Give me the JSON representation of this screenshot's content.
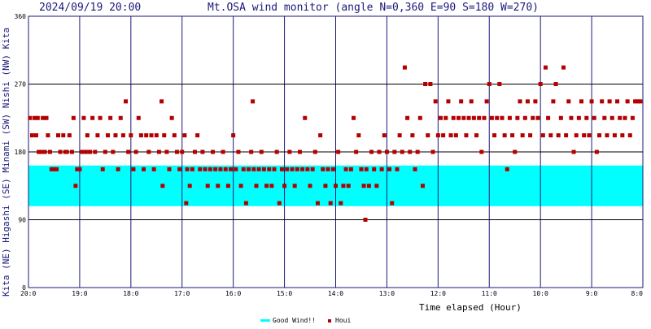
{
  "header": {
    "datetime": "2024/09/19 20:00",
    "title": "Mt.OSA wind monitor (angle N=0,360 E=90 S=180 W=270)"
  },
  "y_axis": {
    "tick_labels": [
      "0",
      "90",
      "180",
      "270",
      "360"
    ],
    "label": "Kita (NE) Higashi (SE) Minami (SW) Nishi (NW) Kita"
  },
  "x_axis": {
    "tick_labels": [
      "20:0",
      "19:0",
      "18:0",
      "17:0",
      "16:0",
      "15:0",
      "14:0",
      "13:0",
      "12:0",
      "11:0",
      "10:0",
      "9:0",
      "8:0"
    ],
    "label": "Time elapsed (Hour)"
  },
  "legend": {
    "good_wind": "Good Wind!!",
    "houi": "Houi"
  },
  "colors": {
    "good_band": "#00ffff",
    "marker": "#b30000",
    "grid": "#1a1a7a",
    "frame": "#1a1a7a"
  },
  "chart_data": {
    "type": "scatter",
    "title": "Mt.OSA wind monitor (angle N=0,360 E=90 S=180 W=270)",
    "xlabel": "Time elapsed (Hour)",
    "ylabel": "Kita (NE) Higashi (SE) Minami (SW) Nishi (NW) Kita",
    "xlim": [
      0,
      12
    ],
    "ylim": [
      0,
      360
    ],
    "x_start": "20:00",
    "x_end": "8:00",
    "grid": true,
    "legend_position": "bottom-center",
    "good_wind_band": [
      108,
      162
    ],
    "series": [
      {
        "name": "Houi",
        "points": [
          [
            0.03,
            225
          ],
          [
            0.07,
            202
          ],
          [
            0.12,
            225
          ],
          [
            0.15,
            202
          ],
          [
            0.18,
            225
          ],
          [
            0.2,
            180
          ],
          [
            0.25,
            180
          ],
          [
            0.28,
            225
          ],
          [
            0.32,
            180
          ],
          [
            0.35,
            225
          ],
          [
            0.38,
            202
          ],
          [
            0.42,
            180
          ],
          [
            0.45,
            157
          ],
          [
            0.5,
            157
          ],
          [
            0.55,
            157
          ],
          [
            0.58,
            202
          ],
          [
            0.62,
            180
          ],
          [
            0.68,
            202
          ],
          [
            0.72,
            180
          ],
          [
            0.75,
            180
          ],
          [
            0.8,
            202
          ],
          [
            0.85,
            180
          ],
          [
            0.88,
            225
          ],
          [
            0.92,
            135
          ],
          [
            0.95,
            157
          ],
          [
            1.0,
            157
          ],
          [
            1.05,
            180
          ],
          [
            1.08,
            225
          ],
          [
            1.12,
            180
          ],
          [
            1.15,
            202
          ],
          [
            1.2,
            180
          ],
          [
            1.25,
            225
          ],
          [
            1.3,
            180
          ],
          [
            1.35,
            202
          ],
          [
            1.4,
            225
          ],
          [
            1.45,
            157
          ],
          [
            1.5,
            180
          ],
          [
            1.55,
            202
          ],
          [
            1.6,
            225
          ],
          [
            1.65,
            180
          ],
          [
            1.7,
            202
          ],
          [
            1.75,
            157
          ],
          [
            1.8,
            225
          ],
          [
            1.85,
            202
          ],
          [
            1.9,
            247
          ],
          [
            1.95,
            180
          ],
          [
            2.0,
            202
          ],
          [
            2.05,
            157
          ],
          [
            2.1,
            180
          ],
          [
            2.15,
            225
          ],
          [
            2.2,
            202
          ],
          [
            2.25,
            157
          ],
          [
            2.3,
            202
          ],
          [
            2.35,
            180
          ],
          [
            2.4,
            202
          ],
          [
            2.45,
            157
          ],
          [
            2.5,
            202
          ],
          [
            2.55,
            180
          ],
          [
            2.6,
            247
          ],
          [
            2.62,
            135
          ],
          [
            2.65,
            202
          ],
          [
            2.7,
            180
          ],
          [
            2.75,
            157
          ],
          [
            2.8,
            225
          ],
          [
            2.85,
            202
          ],
          [
            2.9,
            180
          ],
          [
            2.95,
            157
          ],
          [
            3.0,
            180
          ],
          [
            3.05,
            202
          ],
          [
            3.08,
            112
          ],
          [
            3.1,
            157
          ],
          [
            3.15,
            135
          ],
          [
            3.2,
            157
          ],
          [
            3.25,
            180
          ],
          [
            3.3,
            202
          ],
          [
            3.35,
            157
          ],
          [
            3.4,
            180
          ],
          [
            3.45,
            157
          ],
          [
            3.5,
            135
          ],
          [
            3.55,
            157
          ],
          [
            3.6,
            180
          ],
          [
            3.65,
            157
          ],
          [
            3.7,
            135
          ],
          [
            3.75,
            157
          ],
          [
            3.8,
            180
          ],
          [
            3.85,
            157
          ],
          [
            3.9,
            135
          ],
          [
            3.95,
            157
          ],
          [
            4.0,
            202
          ],
          [
            4.05,
            157
          ],
          [
            4.1,
            180
          ],
          [
            4.15,
            135
          ],
          [
            4.2,
            157
          ],
          [
            4.25,
            112
          ],
          [
            4.3,
            157
          ],
          [
            4.35,
            180
          ],
          [
            4.38,
            247
          ],
          [
            4.4,
            157
          ],
          [
            4.45,
            135
          ],
          [
            4.5,
            157
          ],
          [
            4.55,
            180
          ],
          [
            4.6,
            157
          ],
          [
            4.65,
            135
          ],
          [
            4.7,
            157
          ],
          [
            4.75,
            135
          ],
          [
            4.8,
            157
          ],
          [
            4.85,
            180
          ],
          [
            4.9,
            112
          ],
          [
            4.95,
            157
          ],
          [
            5.0,
            135
          ],
          [
            5.05,
            157
          ],
          [
            5.1,
            180
          ],
          [
            5.15,
            157
          ],
          [
            5.2,
            135
          ],
          [
            5.25,
            157
          ],
          [
            5.3,
            180
          ],
          [
            5.35,
            157
          ],
          [
            5.4,
            225
          ],
          [
            5.45,
            157
          ],
          [
            5.5,
            135
          ],
          [
            5.55,
            157
          ],
          [
            5.6,
            180
          ],
          [
            5.65,
            112
          ],
          [
            5.7,
            202
          ],
          [
            5.75,
            157
          ],
          [
            5.8,
            135
          ],
          [
            5.85,
            157
          ],
          [
            5.9,
            112
          ],
          [
            5.95,
            157
          ],
          [
            6.0,
            135
          ],
          [
            6.05,
            180
          ],
          [
            6.1,
            112
          ],
          [
            6.15,
            135
          ],
          [
            6.2,
            157
          ],
          [
            6.25,
            135
          ],
          [
            6.3,
            157
          ],
          [
            6.35,
            225
          ],
          [
            6.4,
            180
          ],
          [
            6.45,
            202
          ],
          [
            6.5,
            157
          ],
          [
            6.55,
            135
          ],
          [
            6.58,
            90
          ],
          [
            6.6,
            157
          ],
          [
            6.65,
            135
          ],
          [
            6.7,
            180
          ],
          [
            6.75,
            157
          ],
          [
            6.8,
            135
          ],
          [
            6.85,
            180
          ],
          [
            6.9,
            157
          ],
          [
            6.95,
            202
          ],
          [
            7.0,
            180
          ],
          [
            7.05,
            157
          ],
          [
            7.1,
            112
          ],
          [
            7.15,
            180
          ],
          [
            7.2,
            157
          ],
          [
            7.25,
            202
          ],
          [
            7.3,
            180
          ],
          [
            7.35,
            292
          ],
          [
            7.4,
            225
          ],
          [
            7.45,
            180
          ],
          [
            7.5,
            202
          ],
          [
            7.55,
            157
          ],
          [
            7.6,
            180
          ],
          [
            7.65,
            225
          ],
          [
            7.7,
            135
          ],
          [
            7.75,
            270
          ],
          [
            7.8,
            202
          ],
          [
            7.85,
            270
          ],
          [
            7.9,
            180
          ],
          [
            7.95,
            247
          ],
          [
            8.0,
            202
          ],
          [
            8.05,
            225
          ],
          [
            8.1,
            202
          ],
          [
            8.15,
            225
          ],
          [
            8.2,
            247
          ],
          [
            8.25,
            202
          ],
          [
            8.3,
            225
          ],
          [
            8.35,
            202
          ],
          [
            8.4,
            225
          ],
          [
            8.45,
            247
          ],
          [
            8.5,
            225
          ],
          [
            8.55,
            202
          ],
          [
            8.6,
            225
          ],
          [
            8.65,
            247
          ],
          [
            8.7,
            225
          ],
          [
            8.75,
            202
          ],
          [
            8.8,
            225
          ],
          [
            8.85,
            180
          ],
          [
            8.9,
            225
          ],
          [
            8.95,
            247
          ],
          [
            9.0,
            270
          ],
          [
            9.05,
            225
          ],
          [
            9.1,
            202
          ],
          [
            9.15,
            225
          ],
          [
            9.2,
            270
          ],
          [
            9.25,
            225
          ],
          [
            9.3,
            202
          ],
          [
            9.35,
            157
          ],
          [
            9.4,
            225
          ],
          [
            9.45,
            202
          ],
          [
            9.5,
            180
          ],
          [
            9.55,
            225
          ],
          [
            9.6,
            247
          ],
          [
            9.65,
            202
          ],
          [
            9.7,
            225
          ],
          [
            9.75,
            247
          ],
          [
            9.8,
            202
          ],
          [
            9.85,
            225
          ],
          [
            9.9,
            247
          ],
          [
            9.95,
            225
          ],
          [
            10.0,
            270
          ],
          [
            10.05,
            202
          ],
          [
            10.1,
            292
          ],
          [
            10.15,
            225
          ],
          [
            10.2,
            202
          ],
          [
            10.25,
            247
          ],
          [
            10.3,
            270
          ],
          [
            10.35,
            202
          ],
          [
            10.4,
            225
          ],
          [
            10.45,
            292
          ],
          [
            10.5,
            202
          ],
          [
            10.55,
            247
          ],
          [
            10.6,
            225
          ],
          [
            10.65,
            180
          ],
          [
            10.7,
            202
          ],
          [
            10.75,
            225
          ],
          [
            10.8,
            247
          ],
          [
            10.85,
            202
          ],
          [
            10.9,
            225
          ],
          [
            10.95,
            202
          ],
          [
            11.0,
            247
          ],
          [
            11.05,
            225
          ],
          [
            11.1,
            180
          ],
          [
            11.15,
            202
          ],
          [
            11.2,
            247
          ],
          [
            11.25,
            225
          ],
          [
            11.3,
            202
          ],
          [
            11.35,
            247
          ],
          [
            11.4,
            225
          ],
          [
            11.45,
            202
          ],
          [
            11.5,
            247
          ],
          [
            11.55,
            225
          ],
          [
            11.6,
            202
          ],
          [
            11.65,
            225
          ],
          [
            11.7,
            247
          ],
          [
            11.75,
            202
          ],
          [
            11.8,
            225
          ],
          [
            11.85,
            247
          ],
          [
            11.9,
            247
          ],
          [
            11.95,
            247
          ]
        ]
      },
      {
        "name": "Good Wind!!",
        "band": [
          108,
          162
        ]
      }
    ]
  }
}
